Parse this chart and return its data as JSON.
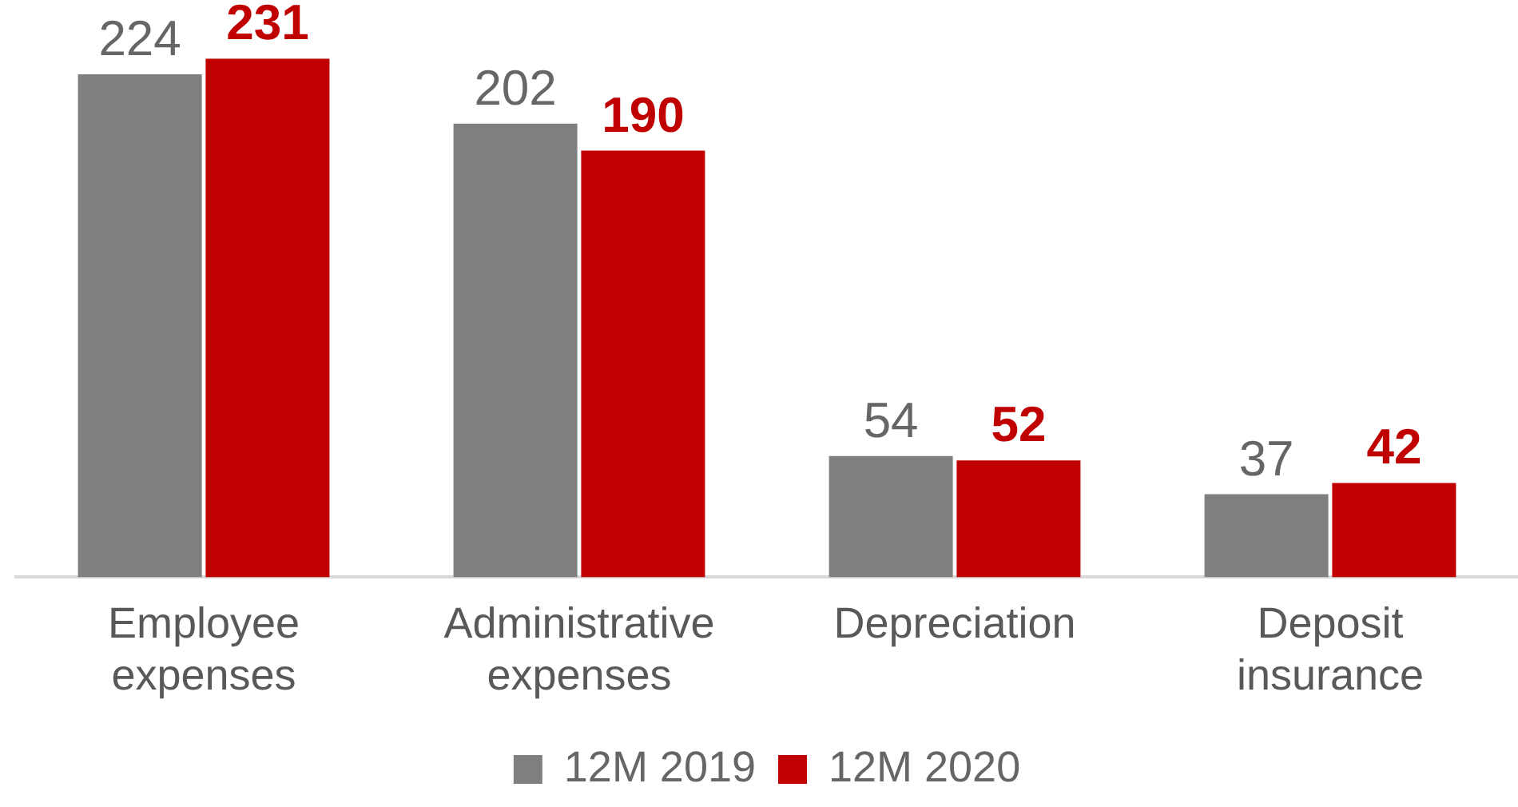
{
  "chart_data": {
    "type": "bar",
    "categories": [
      "Employee expenses",
      "Administrative expenses",
      "Depreciation",
      "Deposit insurance"
    ],
    "series": [
      {
        "name": "12M 2019",
        "color": "#7f7f7f",
        "values": [
          224,
          202,
          54,
          37
        ]
      },
      {
        "name": "12M 2020",
        "color": "#c00000",
        "values": [
          231,
          190,
          52,
          42
        ]
      }
    ],
    "data_labels": true,
    "legend": "bottom",
    "grid": false,
    "tick_labels": "x"
  }
}
